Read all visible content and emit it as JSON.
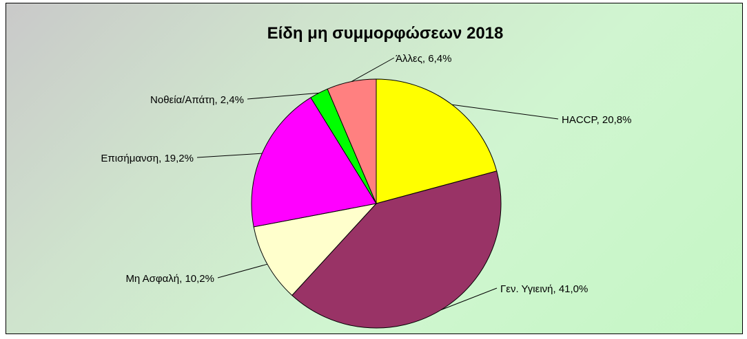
{
  "chart_data": {
    "type": "pie",
    "title": "Είδη μη συμμορφώσεων 2018",
    "categories": [
      "HACCP",
      "Γεν. Υγιεινή",
      "Μη Ασφαλή",
      "Επισήμανση",
      "Νοθεία/Απάτη",
      "Άλλες"
    ],
    "values": [
      20.8,
      41.0,
      10.2,
      19.2,
      2.4,
      6.4
    ],
    "labels": [
      "HACCP, 20,8%",
      "Γεν. Υγιεινή, 41,0%",
      "Μη Ασφαλή, 10,2%",
      "Επισήμανση, 19,2%",
      "Νοθεία/Απάτη, 2,4%",
      "Άλλες, 6,4%"
    ],
    "colors": [
      "#ffff00",
      "#993366",
      "#ffffcc",
      "#ff00ff",
      "#00ff00",
      "#ff8080"
    ],
    "start_angle": "12 o'clock, clockwise",
    "legend": "none, labels with leader lines"
  }
}
